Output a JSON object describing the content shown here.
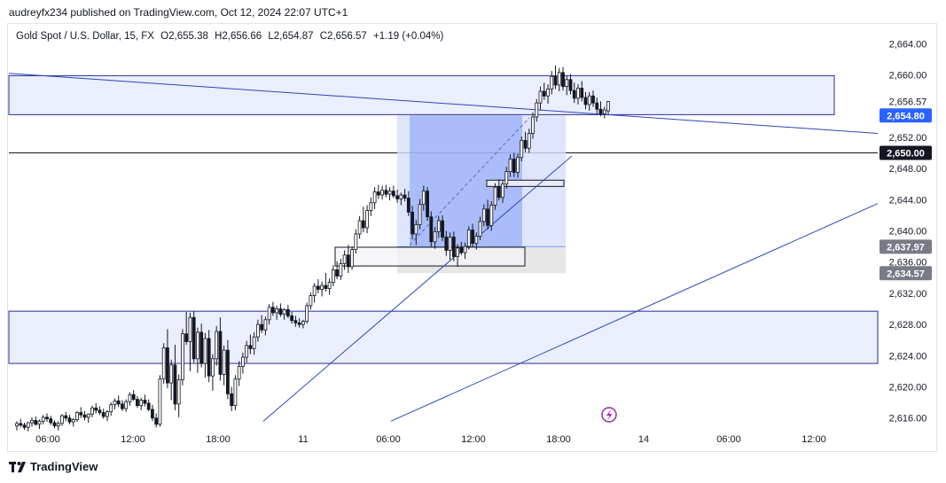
{
  "publisher": "audreyfx234 published on TradingView.com, Oct 12, 2024 22:07 UTC+1",
  "symbol": {
    "name": "Gold Spot / U.S. Dollar, 15, FX",
    "open": "O2,655.38",
    "high": "H2,656.66",
    "low": "L2,654.87",
    "close": "C2,656.57",
    "change": "+1.19 (+0.04%)"
  },
  "brand": "TradingView",
  "colors": {
    "zone_fill": "#e3e8fc",
    "zone_border": "#2a2e8c",
    "trendline": "#2a46b8",
    "position_entry": "#7f9af5",
    "candle": "#131722",
    "badge_dark": "#131722",
    "badge_blue": "#2962ff",
    "badge_gray": "#787b86",
    "tv_purple": "#9c27b0"
  },
  "chart_data": {
    "type": "candlestick",
    "y_axis_ticks": [
      "2,664.00",
      "2,660.00",
      "2,656.57",
      "2,652.00",
      "2,648.00",
      "2,644.00",
      "2,640.00",
      "2,636.00",
      "2,632.00",
      "2,628.00",
      "2,624.00",
      "2,620.00",
      "2,616.00"
    ],
    "x_axis_ticks": [
      "06:00",
      "12:00",
      "18:00",
      "11",
      "06:00",
      "12:00",
      "18:00",
      "14",
      "06:00",
      "12:00"
    ],
    "ylim": [
      2614.3,
      2666.8
    ],
    "price_badges": [
      {
        "label": "2,654.80",
        "value": 2654.8,
        "style": "blue"
      },
      {
        "label": "2,650.00",
        "value": 2650.0,
        "style": "dark"
      },
      {
        "label": "2,637.97",
        "value": 2637.97,
        "style": "gray"
      },
      {
        "label": "2,634.57",
        "value": 2634.57,
        "style": "gray"
      }
    ],
    "zones": [
      {
        "top": 2659.9,
        "bottom": 2654.9
      },
      {
        "top": 2629.7,
        "bottom": 2623.0
      }
    ],
    "horizontal_line": 2650.0,
    "series": [
      {
        "ohlc": [
          [
            2615.0,
            2615.6,
            2614.4,
            2615.3
          ],
          [
            2615.3,
            2615.9,
            2614.8,
            2615.1
          ],
          [
            2615.1,
            2615.4,
            2614.5,
            2614.8
          ],
          [
            2614.8,
            2615.5,
            2614.3,
            2615.4
          ],
          [
            2615.4,
            2616.1,
            2614.9,
            2615.7
          ],
          [
            2615.7,
            2616.2,
            2615.0,
            2615.2
          ],
          [
            2615.2,
            2615.8,
            2614.6,
            2615.6
          ],
          [
            2615.6,
            2616.4,
            2615.2,
            2616.1
          ],
          [
            2616.1,
            2616.6,
            2615.5,
            2615.9
          ],
          [
            2615.9,
            2616.3,
            2615.1,
            2615.4
          ],
          [
            2615.4,
            2615.7,
            2614.7,
            2615.0
          ],
          [
            2615.0,
            2615.6,
            2614.4,
            2615.3
          ],
          [
            2615.3,
            2616.5,
            2615.0,
            2616.3
          ],
          [
            2616.3,
            2616.8,
            2615.6,
            2616.0
          ],
          [
            2616.0,
            2616.4,
            2615.2,
            2615.5
          ],
          [
            2615.5,
            2616.0,
            2614.9,
            2615.8
          ],
          [
            2615.8,
            2616.9,
            2615.5,
            2616.7
          ],
          [
            2616.7,
            2617.4,
            2616.0,
            2616.4
          ],
          [
            2616.4,
            2616.9,
            2615.7,
            2616.1
          ],
          [
            2616.1,
            2616.6,
            2615.4,
            2616.5
          ],
          [
            2616.5,
            2617.6,
            2616.1,
            2617.3
          ],
          [
            2617.3,
            2617.9,
            2616.6,
            2617.0
          ],
          [
            2617.0,
            2617.5,
            2616.4,
            2616.7
          ],
          [
            2616.7,
            2617.2,
            2615.9,
            2616.2
          ],
          [
            2616.2,
            2617.0,
            2615.6,
            2616.8
          ],
          [
            2616.8,
            2618.0,
            2616.3,
            2617.7
          ],
          [
            2617.7,
            2618.5,
            2617.1,
            2618.2
          ],
          [
            2618.2,
            2618.9,
            2617.4,
            2617.8
          ],
          [
            2617.8,
            2618.3,
            2616.9,
            2617.2
          ],
          [
            2617.2,
            2618.4,
            2616.8,
            2618.1
          ],
          [
            2618.1,
            2619.3,
            2617.6,
            2619.0
          ],
          [
            2619.0,
            2619.6,
            2618.2,
            2618.4
          ],
          [
            2618.4,
            2618.8,
            2617.3,
            2617.6
          ],
          [
            2617.6,
            2618.6,
            2617.0,
            2618.3
          ],
          [
            2618.3,
            2619.0,
            2617.5,
            2617.9
          ],
          [
            2617.9,
            2618.4,
            2616.9,
            2617.1
          ],
          [
            2617.1,
            2617.7,
            2615.6,
            2616.0
          ],
          [
            2616.0,
            2616.6,
            2614.8,
            2615.2
          ],
          [
            2615.2,
            2621.5,
            2614.9,
            2621.0
          ],
          [
            2621.0,
            2625.6,
            2620.4,
            2625.0
          ],
          [
            2625.0,
            2627.4,
            2619.8,
            2620.5
          ],
          [
            2620.5,
            2623.5,
            2618.3,
            2622.8
          ],
          [
            2622.8,
            2625.4,
            2617.0,
            2617.8
          ],
          [
            2617.8,
            2621.6,
            2616.1,
            2620.9
          ],
          [
            2620.9,
            2627.4,
            2620.2,
            2626.8
          ],
          [
            2626.8,
            2629.6,
            2625.4,
            2625.8
          ],
          [
            2625.8,
            2629.5,
            2622.0,
            2628.9
          ],
          [
            2628.9,
            2629.7,
            2623.1,
            2623.6
          ],
          [
            2623.6,
            2627.6,
            2621.8,
            2627.0
          ],
          [
            2627.0,
            2628.1,
            2622.5,
            2623.0
          ],
          [
            2623.0,
            2626.9,
            2621.2,
            2626.2
          ],
          [
            2626.2,
            2627.3,
            2620.6,
            2621.4
          ],
          [
            2621.4,
            2624.2,
            2619.5,
            2623.6
          ],
          [
            2623.6,
            2627.8,
            2622.7,
            2627.1
          ],
          [
            2627.1,
            2628.9,
            2620.8,
            2621.6
          ],
          [
            2621.6,
            2625.3,
            2620.2,
            2624.7
          ],
          [
            2624.7,
            2626.0,
            2618.4,
            2619.1
          ],
          [
            2619.1,
            2620.0,
            2616.9,
            2617.6
          ],
          [
            2617.6,
            2621.5,
            2617.0,
            2621.0
          ],
          [
            2621.0,
            2623.3,
            2620.1,
            2622.6
          ],
          [
            2622.6,
            2624.4,
            2621.7,
            2623.8
          ],
          [
            2623.8,
            2625.9,
            2623.1,
            2625.3
          ],
          [
            2625.3,
            2626.7,
            2624.2,
            2624.9
          ],
          [
            2624.9,
            2627.0,
            2624.1,
            2626.4
          ],
          [
            2626.4,
            2628.6,
            2625.8,
            2628.0
          ],
          [
            2628.0,
            2629.2,
            2626.9,
            2627.3
          ],
          [
            2627.3,
            2629.0,
            2626.6,
            2628.6
          ],
          [
            2628.6,
            2630.6,
            2628.0,
            2630.2
          ],
          [
            2630.2,
            2630.9,
            2629.1,
            2629.5
          ],
          [
            2629.5,
            2630.4,
            2628.6,
            2630.0
          ],
          [
            2630.0,
            2630.7,
            2629.0,
            2629.3
          ],
          [
            2629.3,
            2630.1,
            2628.6,
            2629.9
          ],
          [
            2629.9,
            2630.5,
            2628.8,
            2629.1
          ],
          [
            2629.1,
            2629.6,
            2628.1,
            2628.5
          ],
          [
            2628.5,
            2629.1,
            2627.7,
            2628.2
          ],
          [
            2628.2,
            2628.8,
            2627.6,
            2628.0
          ],
          [
            2628.0,
            2628.6,
            2627.5,
            2628.4
          ],
          [
            2628.4,
            2630.8,
            2628.1,
            2630.4
          ],
          [
            2630.4,
            2632.1,
            2629.9,
            2631.7
          ],
          [
            2631.7,
            2633.3,
            2630.8,
            2632.9
          ],
          [
            2632.9,
            2633.8,
            2632.0,
            2632.5
          ],
          [
            2632.5,
            2633.5,
            2631.6,
            2633.0
          ],
          [
            2633.0,
            2634.6,
            2632.2,
            2632.6
          ],
          [
            2632.6,
            2633.9,
            2631.8,
            2633.4
          ],
          [
            2633.4,
            2635.6,
            2632.9,
            2635.0
          ],
          [
            2635.0,
            2636.1,
            2633.8,
            2634.2
          ],
          [
            2634.2,
            2636.4,
            2633.7,
            2635.8
          ],
          [
            2635.8,
            2637.5,
            2635.0,
            2636.9
          ],
          [
            2636.9,
            2638.2,
            2634.6,
            2635.4
          ],
          [
            2635.4,
            2638.0,
            2635.0,
            2637.6
          ],
          [
            2637.6,
            2640.2,
            2637.1,
            2639.6
          ],
          [
            2639.6,
            2641.9,
            2639.0,
            2641.3
          ],
          [
            2641.3,
            2643.1,
            2639.8,
            2640.4
          ],
          [
            2640.4,
            2643.3,
            2639.7,
            2642.6
          ],
          [
            2642.6,
            2644.3,
            2641.9,
            2643.6
          ],
          [
            2643.6,
            2645.6,
            2642.8,
            2645.0
          ],
          [
            2645.0,
            2645.9,
            2644.1,
            2644.6
          ],
          [
            2644.6,
            2645.8,
            2644.0,
            2645.2
          ],
          [
            2645.2,
            2645.9,
            2644.3,
            2644.7
          ],
          [
            2644.7,
            2645.6,
            2643.9,
            2645.1
          ],
          [
            2645.1,
            2645.8,
            2644.2,
            2644.5
          ],
          [
            2644.5,
            2645.3,
            2643.6,
            2644.1
          ],
          [
            2644.1,
            2644.9,
            2643.3,
            2644.6
          ],
          [
            2644.6,
            2645.4,
            2643.8,
            2644.2
          ],
          [
            2644.2,
            2645.1,
            2641.9,
            2642.4
          ],
          [
            2642.4,
            2643.2,
            2638.9,
            2639.6
          ],
          [
            2639.6,
            2641.4,
            2638.2,
            2640.8
          ],
          [
            2640.8,
            2644.1,
            2640.2,
            2643.4
          ],
          [
            2643.4,
            2645.8,
            2642.6,
            2645.1
          ],
          [
            2645.1,
            2645.6,
            2641.3,
            2641.8
          ],
          [
            2641.8,
            2642.5,
            2638.0,
            2638.6
          ],
          [
            2638.6,
            2640.5,
            2637.7,
            2639.9
          ],
          [
            2639.9,
            2641.9,
            2639.1,
            2641.3
          ],
          [
            2641.3,
            2642.0,
            2638.7,
            2639.2
          ],
          [
            2639.2,
            2640.0,
            2636.8,
            2637.5
          ],
          [
            2637.5,
            2639.8,
            2636.3,
            2639.2
          ],
          [
            2639.2,
            2639.9,
            2636.1,
            2636.7
          ],
          [
            2636.7,
            2638.3,
            2635.4,
            2637.8
          ],
          [
            2637.8,
            2638.6,
            2636.9,
            2637.2
          ],
          [
            2637.2,
            2638.5,
            2636.4,
            2638.0
          ],
          [
            2638.0,
            2640.6,
            2637.6,
            2640.1
          ],
          [
            2640.1,
            2640.9,
            2637.9,
            2638.4
          ],
          [
            2638.4,
            2639.8,
            2637.6,
            2639.3
          ],
          [
            2639.3,
            2641.8,
            2638.8,
            2641.2
          ],
          [
            2641.2,
            2643.4,
            2640.6,
            2642.8
          ],
          [
            2642.8,
            2644.0,
            2640.2,
            2640.7
          ],
          [
            2640.7,
            2643.8,
            2640.0,
            2643.3
          ],
          [
            2643.3,
            2646.1,
            2642.7,
            2645.6
          ],
          [
            2645.6,
            2646.6,
            2643.9,
            2644.3
          ],
          [
            2644.3,
            2646.5,
            2643.6,
            2646.0
          ],
          [
            2646.0,
            2648.2,
            2645.4,
            2647.6
          ],
          [
            2647.6,
            2649.8,
            2646.9,
            2649.2
          ],
          [
            2649.2,
            2650.0,
            2646.9,
            2647.5
          ],
          [
            2647.5,
            2649.9,
            2646.8,
            2649.4
          ],
          [
            2649.4,
            2652.1,
            2648.9,
            2651.6
          ],
          [
            2651.6,
            2652.7,
            2650.1,
            2650.6
          ],
          [
            2650.6,
            2653.1,
            2650.0,
            2652.5
          ],
          [
            2652.5,
            2655.2,
            2651.8,
            2654.6
          ],
          [
            2654.6,
            2656.9,
            2654.0,
            2656.4
          ],
          [
            2656.4,
            2658.5,
            2655.5,
            2657.9
          ],
          [
            2657.9,
            2659.0,
            2656.8,
            2657.3
          ],
          [
            2657.3,
            2658.8,
            2656.3,
            2658.2
          ],
          [
            2658.2,
            2660.5,
            2657.5,
            2659.8
          ],
          [
            2659.8,
            2661.2,
            2658.2,
            2658.7
          ],
          [
            2658.7,
            2660.9,
            2657.9,
            2660.3
          ],
          [
            2660.3,
            2661.0,
            2658.0,
            2658.5
          ],
          [
            2658.5,
            2659.9,
            2657.4,
            2659.4
          ],
          [
            2659.4,
            2660.1,
            2657.5,
            2658.0
          ],
          [
            2658.0,
            2659.0,
            2656.4,
            2657.0
          ],
          [
            2657.0,
            2658.8,
            2656.2,
            2658.3
          ],
          [
            2658.3,
            2659.2,
            2656.6,
            2657.1
          ],
          [
            2657.1,
            2657.8,
            2655.6,
            2656.2
          ],
          [
            2656.2,
            2657.8,
            2655.4,
            2657.3
          ],
          [
            2657.3,
            2658.0,
            2655.9,
            2656.4
          ],
          [
            2656.4,
            2657.1,
            2655.0,
            2655.6
          ],
          [
            2655.6,
            2656.6,
            2654.7,
            2655.0
          ],
          [
            2655.0,
            2655.9,
            2654.4,
            2655.5
          ],
          [
            2655.38,
            2656.66,
            2654.87,
            2656.57
          ]
        ]
      }
    ],
    "trendlines": [
      {
        "from": [
          "06:00 (Oct 10)",
          2660.2
        ],
        "to": [
          "12:00 (Oct 14)",
          2652.5
        ]
      },
      {
        "from": [
          "18:00 (Oct 10)",
          2615.6
        ],
        "to": [
          "18:00 (Oct 11)",
          2649.6
        ]
      },
      {
        "from": [
          "06:00 (Oct 11)",
          2615.6
        ],
        "to": [
          "12:00 (Oct 14)",
          2643.5
        ]
      }
    ],
    "position": {
      "entry": 2637.97,
      "target": 2654.8,
      "stop": 2634.57
    }
  }
}
